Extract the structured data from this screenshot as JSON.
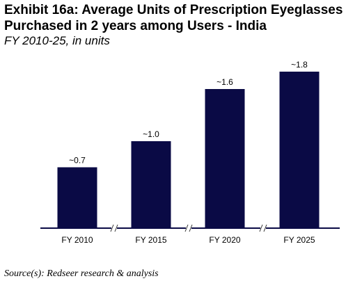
{
  "chart_data": {
    "type": "bar",
    "title_lines": [
      "Exhibit 16a: Average Units of Prescription Eyeglasses",
      "Purchased in 2 years among Users - India"
    ],
    "subtitle": "FY 2010-25, in units",
    "categories": [
      "FY 2010",
      "FY 2015",
      "FY 2020",
      "FY 2025"
    ],
    "values": [
      0.7,
      1.0,
      1.6,
      1.8
    ],
    "data_labels": [
      "~0.7",
      "~1.0",
      "~1.6",
      "~1.8"
    ],
    "xlabel": "",
    "ylabel": "",
    "ylim": [
      0,
      1.8
    ],
    "grid": false,
    "axis_breaks": true,
    "bar_color": "#0a0a45",
    "axis_color": "#0a0a45"
  },
  "source": "Source(s): Redseer research & analysis"
}
